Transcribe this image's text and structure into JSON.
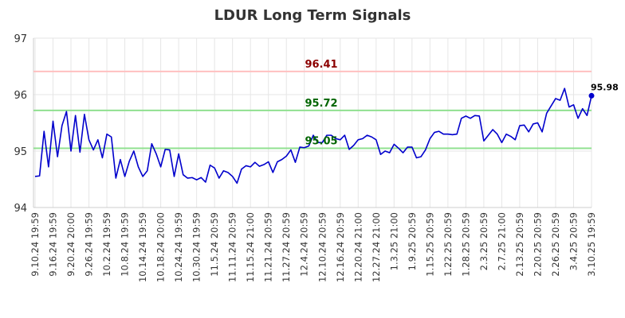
{
  "chart_data": {
    "type": "line",
    "title": "LDUR Long Term Signals",
    "xlabel": "",
    "ylabel": "",
    "ylim": [
      94,
      97
    ],
    "yticks": [
      "94",
      "95",
      "96",
      "97"
    ],
    "grid": true,
    "x_tick_labels": [
      "9.10.24 19:59",
      "9.16.24 19:59",
      "9.20.24 20:00",
      "9.26.24 19:59",
      "10.2.24 19:59",
      "10.8.24 19:59",
      "10.14.24 19:59",
      "10.18.24 20:00",
      "10.24.24 19:59",
      "10.30.24 19:59",
      "11.5.24 20:59",
      "11.11.24 20:59",
      "11.15.24 21:00",
      "11.21.24 20:59",
      "11.27.24 20:59",
      "12.4.24 20:59",
      "12.10.24 20:59",
      "12.16.24 20:59",
      "12.20.24 21:00",
      "12.27.24 21:00",
      "1.3.25 21:00",
      "1.9.25 20:59",
      "1.15.25 20:59",
      "1.22.25 20:59",
      "1.28.25 20:59",
      "2.3.25 20:59",
      "2.7.25 21:00",
      "2.13.25 20:59",
      "2.20.25 20:59",
      "2.26.25 20:59",
      "3.4.25 20:59",
      "3.10.25 19:59"
    ],
    "series": [
      {
        "color": "#0000cc",
        "values": [
          94.55,
          94.56,
          95.35,
          94.72,
          95.53,
          94.9,
          95.45,
          95.7,
          95.0,
          95.63,
          94.98,
          95.65,
          95.2,
          95.02,
          95.2,
          94.88,
          95.3,
          95.25,
          94.52,
          94.85,
          94.55,
          94.82,
          95.0,
          94.72,
          94.55,
          94.65,
          95.13,
          94.95,
          94.72,
          95.03,
          95.02,
          94.55,
          94.95,
          94.58,
          94.52,
          94.53,
          94.49,
          94.53,
          94.45,
          94.75,
          94.7,
          94.52,
          94.65,
          94.62,
          94.55,
          94.43,
          94.68,
          94.74,
          94.72,
          94.8,
          94.73,
          94.76,
          94.81,
          94.62,
          94.81,
          94.85,
          94.91,
          95.02,
          94.8,
          95.07,
          95.06,
          95.09,
          95.28,
          95.15,
          95.15,
          95.28,
          95.28,
          95.22,
          95.2,
          95.28,
          95.03,
          95.1,
          95.2,
          95.22,
          95.28,
          95.25,
          95.2,
          94.94,
          95.0,
          94.97,
          95.12,
          95.05,
          94.97,
          95.07,
          95.07,
          94.88,
          94.9,
          95.02,
          95.22,
          95.33,
          95.35,
          95.3,
          95.3,
          95.29,
          95.3,
          95.58,
          95.62,
          95.58,
          95.63,
          95.62,
          95.18,
          95.28,
          95.38,
          95.3,
          95.15,
          95.3,
          95.26,
          95.2,
          95.45,
          95.46,
          95.34,
          95.48,
          95.5,
          95.34,
          95.67,
          95.8,
          95.93,
          95.9,
          96.11,
          95.78,
          95.82,
          95.58,
          95.75,
          95.63,
          95.98
        ]
      }
    ],
    "horizontal_lines": [
      {
        "value": 96.41,
        "label": "96.41",
        "line_color": "#ffc0c0",
        "label_color": "#8b0000"
      },
      {
        "value": 95.72,
        "label": "95.72",
        "line_color": "#90e090",
        "label_color": "#006400"
      },
      {
        "value": 95.05,
        "label": "95.05",
        "line_color": "#90e090",
        "label_color": "#006400"
      }
    ],
    "last_point": {
      "value": 95.98,
      "label": "95.98"
    }
  }
}
